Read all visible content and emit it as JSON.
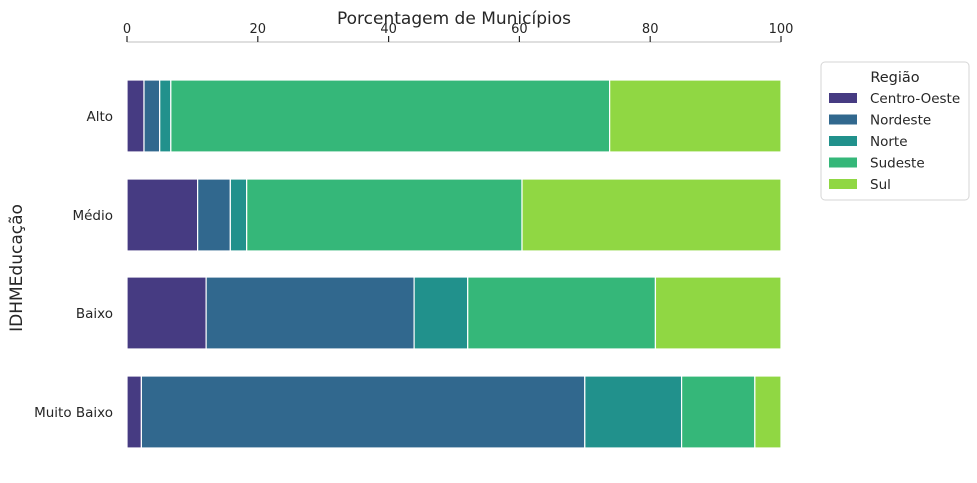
{
  "chart_data": {
    "type": "bar",
    "orientation": "horizontal",
    "stacked": true,
    "xlabel": "Porcentagem de Municípios",
    "ylabel": "IDHMEducação",
    "xlim": [
      0,
      100
    ],
    "xticks": [
      "0",
      "20",
      "40",
      "60",
      "80",
      "100"
    ],
    "categories": [
      "Alto",
      "Médio",
      "Baixo",
      "Muito Baixo"
    ],
    "legend_title": "Região",
    "legend_position": "right",
    "series": [
      {
        "name": "Centro-Oeste",
        "color": "#463b82",
        "values": [
          2.6,
          10.8,
          12.1,
          2.2
        ]
      },
      {
        "name": "Nordeste",
        "color": "#31688e",
        "values": [
          2.4,
          5.0,
          31.8,
          67.8
        ]
      },
      {
        "name": "Norte",
        "color": "#21918c",
        "values": [
          1.7,
          2.5,
          8.2,
          14.8
        ]
      },
      {
        "name": "Sudeste",
        "color": "#35b779",
        "values": [
          67.1,
          42.1,
          28.7,
          11.2
        ]
      },
      {
        "name": "Sul",
        "color": "#90d743",
        "values": [
          26.2,
          39.6,
          19.2,
          4.0
        ]
      }
    ]
  }
}
